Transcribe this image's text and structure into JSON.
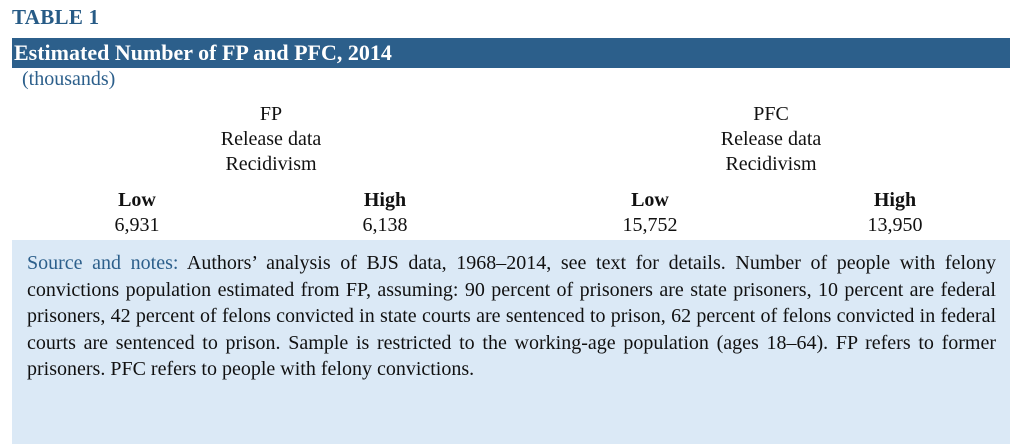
{
  "table": {
    "label": "TABLE 1",
    "title": "Estimated Number of FP and PFC, 2014",
    "units": "(thousands)",
    "groups": [
      {
        "name": "FP",
        "source": "Release data",
        "method": "Recidivism",
        "low_label": "Low",
        "high_label": "High",
        "low_value": "6,931",
        "high_value": "6,138"
      },
      {
        "name": "PFC",
        "source": "Release data",
        "method": "Recidivism",
        "low_label": "Low",
        "high_label": "High",
        "low_value": "15,752",
        "high_value": "13,950"
      }
    ],
    "notes": {
      "lead": "Source and notes:",
      "body": " Authors’ analysis of BJS data, 1968–2014, see text for details. Number of people with felony convictions population estimated from FP, assuming: 90 percent of prisoners are state prisoners, 10 percent are federal prisoners, 42 percent of felons convicted in state courts are sentenced to prison, 62 percent of felons convicted in federal courts are sentenced to prison. Sample is restricted to the working-age population (ages 18–64). FP refers to former prisoners. PFC refers to people with felony convictions."
    }
  },
  "colors": {
    "accent": "#2c5f8b",
    "note_background": "#dbe9f6"
  }
}
